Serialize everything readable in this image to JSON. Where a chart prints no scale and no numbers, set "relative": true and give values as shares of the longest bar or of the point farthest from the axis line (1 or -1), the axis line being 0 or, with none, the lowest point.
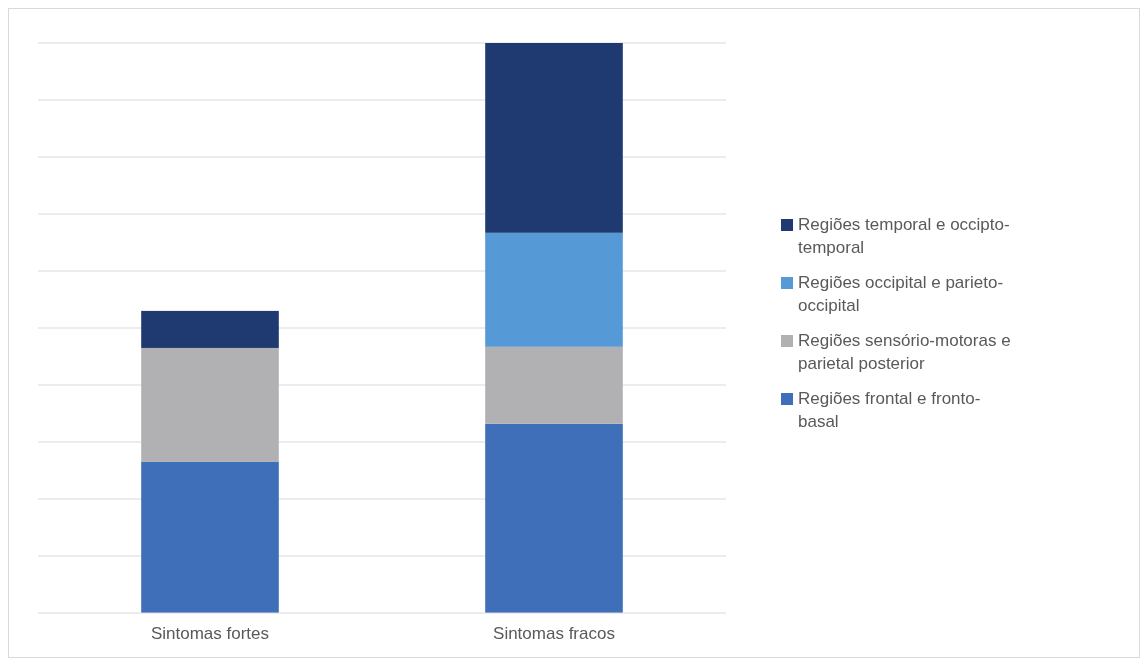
{
  "chart_data": {
    "type": "bar",
    "stacked": true,
    "relative": true,
    "grid": true,
    "legend": "right",
    "categories": [
      "Sintomas fortes",
      "Sintomas fracos"
    ],
    "series": [
      {
        "name": "Regiões frontal e fronto-basal",
        "color": "#3f6fb8",
        "values": [
          0.265,
          0.332
        ]
      },
      {
        "name": "Regiões sensório-motoras e parietal posterior",
        "color": "#b1b1b3",
        "values": [
          0.2,
          0.135
        ]
      },
      {
        "name": "Regiões occipital e parieto-occipital",
        "color": "#559ad6",
        "values": [
          0,
          0.2
        ]
      },
      {
        "name": "Regiões temporal e occipto-temporal",
        "color": "#1f3a70",
        "values": [
          0.065,
          0.333
        ]
      }
    ]
  }
}
